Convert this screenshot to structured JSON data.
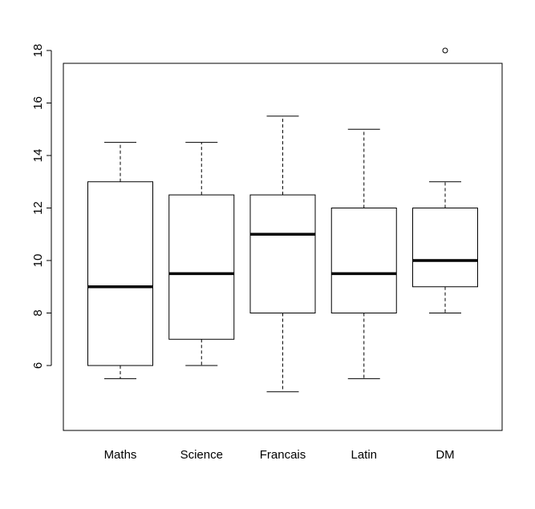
{
  "chart_data": {
    "type": "box",
    "title": "",
    "xlabel": "",
    "ylabel": "",
    "ylim": [
      4.5,
      18.5
    ],
    "yticks": [
      6,
      8,
      10,
      12,
      14,
      16,
      18
    ],
    "grid": false,
    "categories": [
      "Maths",
      "Science",
      "Francais",
      "Latin",
      "DM"
    ],
    "boxes": [
      {
        "category": "Maths",
        "whisker_low": 5.5,
        "q1": 6,
        "median": 9,
        "q3": 13,
        "whisker_high": 14.5,
        "outliers": []
      },
      {
        "category": "Science",
        "whisker_low": 6,
        "q1": 7,
        "median": 9.5,
        "q3": 12.5,
        "whisker_high": 14.5,
        "outliers": []
      },
      {
        "category": "Francais",
        "whisker_low": 5,
        "q1": 8,
        "median": 11,
        "q3": 12.5,
        "whisker_high": 15.5,
        "outliers": []
      },
      {
        "category": "Latin",
        "whisker_low": 5.5,
        "q1": 8,
        "median": 9.5,
        "q3": 12,
        "whisker_high": 15,
        "outliers": []
      },
      {
        "category": "DM",
        "whisker_low": 8,
        "q1": 9,
        "median": 10,
        "q3": 12,
        "whisker_high": 13,
        "outliers": [
          18
        ]
      }
    ]
  }
}
